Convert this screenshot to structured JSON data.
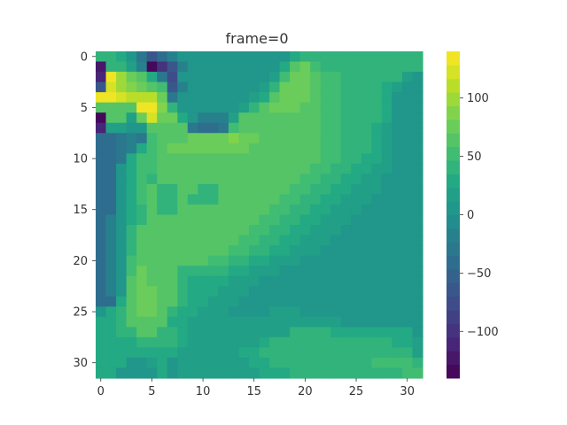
{
  "chart_data": {
    "type": "heatmap",
    "title": "frame=0",
    "xlabel": "",
    "ylabel": "",
    "colormap": "viridis",
    "grid": false,
    "shape": [
      32,
      32
    ],
    "xlim": [
      -0.5,
      31.5
    ],
    "ylim": [
      31.5,
      -0.5
    ],
    "x_ticks": [
      "0",
      "5",
      "10",
      "15",
      "20",
      "25",
      "30"
    ],
    "y_ticks": [
      "0",
      "5",
      "10",
      "15",
      "20",
      "25",
      "30"
    ],
    "colorbar": {
      "vmin": -140,
      "vmax": 140,
      "levels": 24,
      "tick_values": [
        -100,
        -50,
        0,
        50,
        100
      ],
      "tick_labels": [
        "−100",
        "−50",
        "0",
        "50",
        "100"
      ]
    },
    "z": [
      [
        40,
        40,
        30,
        10,
        -30,
        -60,
        -40,
        -20,
        10,
        10,
        10,
        10,
        10,
        10,
        10,
        10,
        10,
        10,
        10,
        30,
        40,
        40,
        40,
        40,
        40,
        40,
        40,
        40,
        40,
        40,
        40,
        40
      ],
      [
        -120,
        40,
        40,
        20,
        -20,
        -140,
        -100,
        -60,
        -20,
        10,
        10,
        10,
        10,
        10,
        10,
        10,
        10,
        10,
        30,
        60,
        70,
        50,
        40,
        40,
        40,
        40,
        40,
        40,
        40,
        40,
        40,
        40
      ],
      [
        -110,
        130,
        100,
        80,
        60,
        30,
        -30,
        -80,
        0,
        10,
        10,
        10,
        10,
        10,
        10,
        10,
        10,
        20,
        50,
        70,
        80,
        60,
        50,
        50,
        40,
        40,
        40,
        40,
        40,
        40,
        20,
        10
      ],
      [
        -60,
        120,
        100,
        90,
        80,
        60,
        50,
        -60,
        -20,
        10,
        10,
        10,
        10,
        10,
        10,
        10,
        20,
        40,
        70,
        80,
        80,
        60,
        50,
        50,
        40,
        40,
        40,
        40,
        30,
        20,
        10,
        10
      ],
      [
        140,
        140,
        120,
        110,
        110,
        110,
        80,
        -30,
        0,
        10,
        10,
        10,
        10,
        10,
        10,
        20,
        30,
        60,
        80,
        70,
        70,
        60,
        50,
        50,
        40,
        40,
        40,
        40,
        30,
        10,
        10,
        10
      ],
      [
        60,
        60,
        60,
        60,
        140,
        130,
        90,
        40,
        10,
        10,
        10,
        10,
        10,
        10,
        20,
        40,
        60,
        70,
        70,
        70,
        60,
        60,
        50,
        50,
        40,
        40,
        40,
        40,
        30,
        10,
        10,
        10
      ],
      [
        -130,
        60,
        60,
        20,
        80,
        120,
        80,
        70,
        30,
        10,
        -20,
        -20,
        -20,
        20,
        60,
        60,
        60,
        60,
        60,
        60,
        60,
        60,
        50,
        50,
        40,
        40,
        40,
        40,
        30,
        10,
        10,
        10
      ],
      [
        -110,
        20,
        20,
        0,
        10,
        60,
        60,
        60,
        60,
        -30,
        -40,
        -40,
        -30,
        50,
        60,
        60,
        60,
        60,
        60,
        60,
        60,
        60,
        50,
        50,
        40,
        40,
        40,
        30,
        20,
        10,
        10,
        10
      ],
      [
        -40,
        -40,
        -30,
        -20,
        -30,
        50,
        60,
        60,
        60,
        70,
        70,
        80,
        80,
        90,
        70,
        70,
        60,
        60,
        60,
        60,
        60,
        60,
        50,
        50,
        40,
        40,
        40,
        30,
        20,
        10,
        10,
        10
      ],
      [
        -40,
        -40,
        -30,
        -20,
        30,
        50,
        60,
        70,
        70,
        70,
        70,
        70,
        70,
        70,
        70,
        60,
        60,
        60,
        60,
        60,
        60,
        60,
        50,
        50,
        40,
        40,
        40,
        30,
        20,
        10,
        10,
        10
      ],
      [
        -40,
        -40,
        -30,
        30,
        50,
        50,
        60,
        60,
        60,
        60,
        60,
        60,
        60,
        60,
        60,
        60,
        60,
        60,
        60,
        60,
        60,
        60,
        50,
        50,
        40,
        40,
        30,
        30,
        20,
        10,
        10,
        10
      ],
      [
        -40,
        -40,
        10,
        30,
        50,
        50,
        60,
        60,
        60,
        60,
        60,
        60,
        60,
        60,
        60,
        60,
        60,
        60,
        60,
        60,
        60,
        50,
        50,
        40,
        40,
        30,
        30,
        20,
        20,
        10,
        10,
        10
      ],
      [
        -40,
        -40,
        10,
        30,
        50,
        40,
        60,
        60,
        60,
        60,
        60,
        60,
        60,
        60,
        60,
        60,
        60,
        60,
        60,
        60,
        50,
        50,
        40,
        40,
        30,
        30,
        20,
        20,
        10,
        10,
        10,
        10
      ],
      [
        -40,
        -40,
        10,
        30,
        50,
        60,
        40,
        40,
        60,
        60,
        40,
        40,
        60,
        60,
        60,
        60,
        60,
        60,
        60,
        50,
        50,
        40,
        40,
        30,
        30,
        20,
        20,
        20,
        10,
        10,
        10,
        10
      ],
      [
        -40,
        -40,
        10,
        30,
        50,
        60,
        40,
        40,
        60,
        40,
        40,
        40,
        60,
        60,
        60,
        60,
        60,
        60,
        50,
        50,
        40,
        40,
        30,
        30,
        20,
        20,
        20,
        10,
        10,
        10,
        10,
        10
      ],
      [
        -40,
        -40,
        10,
        30,
        40,
        60,
        40,
        40,
        60,
        60,
        60,
        60,
        60,
        60,
        60,
        60,
        60,
        50,
        50,
        40,
        40,
        30,
        30,
        20,
        20,
        20,
        10,
        10,
        10,
        10,
        10,
        10
      ],
      [
        -40,
        -20,
        10,
        30,
        40,
        60,
        60,
        60,
        60,
        60,
        60,
        60,
        60,
        60,
        60,
        60,
        50,
        50,
        40,
        40,
        30,
        30,
        20,
        20,
        20,
        10,
        10,
        10,
        10,
        10,
        10,
        10
      ],
      [
        -40,
        -20,
        10,
        40,
        60,
        60,
        60,
        60,
        60,
        60,
        60,
        60,
        60,
        60,
        60,
        50,
        50,
        40,
        40,
        30,
        30,
        20,
        20,
        20,
        10,
        10,
        10,
        10,
        10,
        10,
        10,
        10
      ],
      [
        -40,
        -20,
        10,
        40,
        60,
        60,
        60,
        60,
        60,
        60,
        60,
        60,
        60,
        60,
        50,
        50,
        40,
        40,
        30,
        30,
        20,
        20,
        20,
        10,
        10,
        10,
        10,
        10,
        10,
        10,
        10,
        10
      ],
      [
        -40,
        -20,
        10,
        40,
        60,
        60,
        60,
        60,
        60,
        60,
        60,
        60,
        60,
        50,
        50,
        40,
        40,
        30,
        30,
        20,
        20,
        20,
        10,
        10,
        10,
        10,
        10,
        10,
        10,
        10,
        10,
        10
      ],
      [
        -40,
        -20,
        10,
        50,
        60,
        60,
        60,
        60,
        60,
        60,
        60,
        50,
        50,
        40,
        40,
        30,
        30,
        20,
        20,
        20,
        10,
        10,
        10,
        10,
        10,
        10,
        10,
        10,
        10,
        10,
        10,
        10
      ],
      [
        -40,
        -20,
        10,
        50,
        70,
        60,
        60,
        60,
        40,
        40,
        40,
        40,
        40,
        30,
        30,
        20,
        20,
        20,
        10,
        10,
        10,
        10,
        10,
        10,
        10,
        10,
        10,
        10,
        10,
        10,
        10,
        10
      ],
      [
        -40,
        -20,
        10,
        60,
        70,
        60,
        60,
        60,
        40,
        30,
        30,
        30,
        30,
        20,
        20,
        20,
        10,
        10,
        10,
        10,
        10,
        10,
        10,
        10,
        10,
        10,
        10,
        10,
        10,
        10,
        10,
        10
      ],
      [
        -40,
        -20,
        10,
        60,
        70,
        70,
        60,
        60,
        40,
        30,
        30,
        30,
        20,
        20,
        20,
        10,
        10,
        10,
        10,
        10,
        10,
        10,
        10,
        10,
        10,
        10,
        10,
        10,
        10,
        10,
        10,
        10
      ],
      [
        -40,
        -40,
        30,
        60,
        70,
        70,
        60,
        60,
        40,
        30,
        30,
        20,
        20,
        20,
        10,
        10,
        10,
        10,
        10,
        10,
        10,
        10,
        10,
        10,
        10,
        10,
        10,
        10,
        10,
        10,
        10,
        10
      ],
      [
        10,
        30,
        40,
        60,
        70,
        70,
        60,
        40,
        30,
        30,
        20,
        20,
        20,
        10,
        10,
        10,
        10,
        20,
        20,
        20,
        10,
        10,
        10,
        10,
        10,
        10,
        10,
        10,
        10,
        10,
        10,
        10
      ],
      [
        30,
        30,
        40,
        60,
        60,
        60,
        60,
        30,
        30,
        20,
        20,
        20,
        20,
        20,
        20,
        20,
        20,
        20,
        20,
        20,
        20,
        20,
        20,
        20,
        10,
        10,
        10,
        10,
        10,
        10,
        10,
        10
      ],
      [
        30,
        30,
        40,
        40,
        60,
        60,
        40,
        40,
        30,
        20,
        20,
        20,
        20,
        20,
        20,
        20,
        20,
        20,
        20,
        40,
        40,
        40,
        40,
        30,
        30,
        30,
        30,
        30,
        30,
        30,
        30,
        10
      ],
      [
        30,
        30,
        30,
        30,
        40,
        40,
        40,
        40,
        30,
        20,
        20,
        20,
        20,
        20,
        20,
        20,
        30,
        40,
        40,
        40,
        40,
        40,
        40,
        40,
        40,
        40,
        40,
        40,
        40,
        30,
        30,
        20
      ],
      [
        30,
        30,
        30,
        30,
        30,
        30,
        30,
        30,
        20,
        20,
        20,
        20,
        20,
        20,
        30,
        30,
        40,
        40,
        40,
        40,
        40,
        40,
        40,
        40,
        40,
        40,
        40,
        40,
        40,
        40,
        40,
        20
      ],
      [
        30,
        30,
        30,
        10,
        10,
        20,
        30,
        10,
        20,
        20,
        20,
        20,
        20,
        20,
        20,
        30,
        30,
        40,
        40,
        40,
        40,
        40,
        40,
        40,
        40,
        40,
        40,
        50,
        50,
        50,
        50,
        40
      ],
      [
        30,
        30,
        10,
        10,
        10,
        10,
        30,
        10,
        20,
        20,
        20,
        20,
        20,
        20,
        20,
        20,
        30,
        30,
        30,
        40,
        40,
        40,
        40,
        40,
        40,
        40,
        40,
        40,
        40,
        40,
        50,
        50
      ]
    ]
  }
}
